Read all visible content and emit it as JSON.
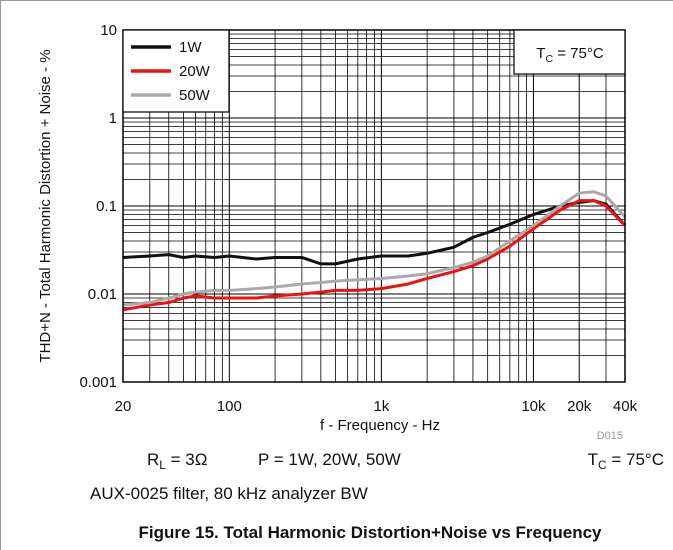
{
  "chart_data": {
    "type": "line",
    "xlabel": "f - Frequency - Hz",
    "ylabel": "THD+N - Total Harmonic Distortion + Noise - %",
    "xscale": "log",
    "yscale": "log",
    "xlim": [
      20,
      40000
    ],
    "ylim": [
      0.001,
      10
    ],
    "xticks": [
      20,
      100,
      {
        "value": 1000,
        "label": "1k"
      },
      {
        "value": 10000,
        "label": "10k"
      },
      {
        "value": 20000,
        "label": "20k"
      },
      {
        "value": 40000,
        "label": "40k"
      }
    ],
    "yticks": [
      0.001,
      0.01,
      0.1,
      1,
      10
    ],
    "xminor": [
      30,
      40,
      50,
      60,
      70,
      80,
      90,
      200,
      300,
      400,
      500,
      600,
      700,
      800,
      900,
      2000,
      3000,
      4000,
      5000,
      6000,
      7000,
      8000,
      9000,
      30000
    ],
    "yminor": [
      0.002,
      0.003,
      0.004,
      0.005,
      0.006,
      0.007,
      0.008,
      0.009,
      0.02,
      0.03,
      0.04,
      0.05,
      0.06,
      0.07,
      0.08,
      0.09,
      0.2,
      0.3,
      0.4,
      0.5,
      0.6,
      0.7,
      0.8,
      0.9,
      2,
      3,
      4,
      5,
      6,
      7,
      8,
      9
    ],
    "grid": true,
    "legend": "upper left",
    "x": [
      20,
      30,
      40,
      50,
      60,
      80,
      100,
      150,
      200,
      300,
      400,
      500,
      700,
      1000,
      1500,
      2000,
      3000,
      4000,
      5000,
      7000,
      10000,
      15000,
      20000,
      25000,
      30000,
      40000
    ],
    "series": [
      {
        "name": "1W",
        "color": "#111111",
        "values": [
          0.026,
          0.027,
          0.028,
          0.026,
          0.027,
          0.026,
          0.027,
          0.025,
          0.026,
          0.026,
          0.022,
          0.022,
          0.025,
          0.027,
          0.027,
          0.029,
          0.034,
          0.044,
          0.05,
          0.062,
          0.08,
          0.1,
          0.11,
          0.115,
          0.105,
          0.06
        ]
      },
      {
        "name": "20W",
        "color": "#ee1111",
        "values": [
          0.0066,
          0.0075,
          0.008,
          0.009,
          0.0095,
          0.009,
          0.009,
          0.009,
          0.0095,
          0.01,
          0.0105,
          0.011,
          0.011,
          0.0115,
          0.013,
          0.015,
          0.018,
          0.021,
          0.025,
          0.035,
          0.055,
          0.09,
          0.115,
          0.115,
          0.1,
          0.06
        ]
      },
      {
        "name": "50W",
        "color": "#aaaaaa",
        "values": [
          0.0075,
          0.008,
          0.009,
          0.01,
          0.0105,
          0.011,
          0.011,
          0.0115,
          0.012,
          0.013,
          0.0135,
          0.014,
          0.0145,
          0.015,
          0.016,
          0.017,
          0.02,
          0.023,
          0.027,
          0.04,
          0.06,
          0.1,
          0.14,
          0.145,
          0.13,
          0.075
        ]
      }
    ],
    "annotation": [
      "T",
      "C",
      " = 75°C"
    ],
    "figure_id": "D015",
    "conditions": {
      "load": [
        "R",
        "L",
        " = 3Ω"
      ],
      "power": "P = 1W, 20W, 50W",
      "temp": [
        "T",
        "C",
        " = 75°C"
      ],
      "filter": "AUX-0025 filter, 80 kHz analyzer BW"
    },
    "caption": "Figure 15. Total Harmonic Distortion+Noise vs Frequency"
  }
}
